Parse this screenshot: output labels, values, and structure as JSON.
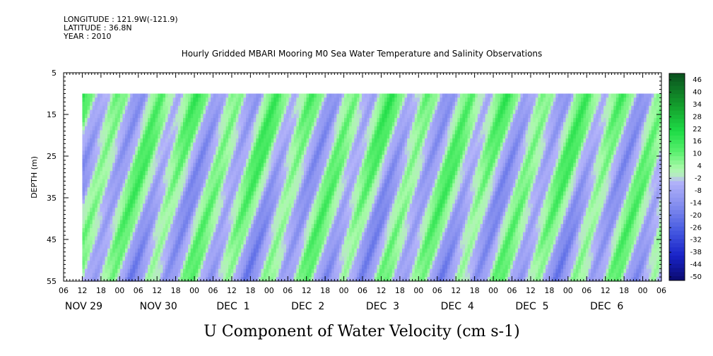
{
  "header": {
    "longitude": "LONGITUDE : 121.9W(-121.9)",
    "latitude": "LATITUDE : 36.8N",
    "year": "YEAR : 2010"
  },
  "chart_data": {
    "type": "heatmap",
    "title": "Hourly Gridded MBARI Mooring M0 Sea Water Temperature and Salinity Observations",
    "xlabel": "U Component of Water Velocity (cm s-1)",
    "ylabel": "DEPTH (m)",
    "y_ticks": [
      "5",
      "15",
      "25",
      "35",
      "45",
      "55"
    ],
    "ylim": [
      55,
      5
    ],
    "data_depth_range": [
      10,
      55
    ],
    "data_start": "NOV 29 12",
    "data_end": "DEC 6 06",
    "x_hour_labels": [
      "06",
      "12",
      "18",
      "00",
      "06",
      "12",
      "18",
      "00",
      "06",
      "12",
      "18",
      "00",
      "06",
      "12",
      "18",
      "00",
      "06",
      "12",
      "18",
      "00",
      "06",
      "12",
      "18",
      "00",
      "06",
      "12",
      "18",
      "00",
      "06",
      "12",
      "18",
      "00",
      "06"
    ],
    "x_date_labels": [
      {
        "label": "NOV 29",
        "hour_index": 1
      },
      {
        "label": "NOV 30",
        "hour_index": 5
      },
      {
        "label": "DEC  1",
        "hour_index": 9
      },
      {
        "label": "DEC  2",
        "hour_index": 13
      },
      {
        "label": "DEC  3",
        "hour_index": 17
      },
      {
        "label": "DEC  4",
        "hour_index": 21
      },
      {
        "label": "DEC  5",
        "hour_index": 25
      },
      {
        "label": "DEC  6",
        "hour_index": 29
      }
    ],
    "colorbar": {
      "labels": [
        "46",
        "40",
        "34",
        "28",
        "22",
        "16",
        "10",
        "4",
        "-2",
        "-8",
        "-14",
        "-20",
        "-26",
        "-32",
        "-38",
        "-44",
        "-50"
      ],
      "range": [
        -50,
        50
      ]
    }
  }
}
